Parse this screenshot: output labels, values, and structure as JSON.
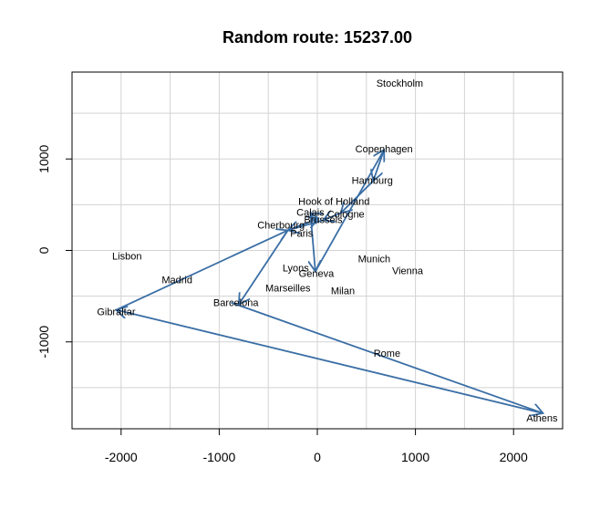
{
  "chart_data": {
    "type": "scatter",
    "title": "Random route: 15237.00",
    "xlabel": "",
    "ylabel": "",
    "xlim": [
      -2500,
      2500
    ],
    "ylim": [
      -1950,
      1950
    ],
    "x_ticks": [
      -2000,
      -1000,
      0,
      1000,
      2000
    ],
    "y_ticks": [
      -1000,
      0,
      1000
    ],
    "x_tick_labels": [
      "-2000",
      "-1000",
      "0",
      "1000",
      "2000"
    ],
    "y_tick_labels": [
      "-1000",
      "0",
      "1000"
    ],
    "grid": true,
    "grid_x": [
      -2500,
      -2000,
      -1500,
      -1000,
      -500,
      0,
      500,
      1000,
      1500,
      2000,
      2500
    ],
    "grid_y": [
      -1500,
      -1000,
      -500,
      0,
      500,
      1000,
      1500
    ],
    "grid_color": "#d3d3d3",
    "route_color": "#3a6ea5",
    "cities": [
      {
        "name": "Stockholm",
        "x": 840,
        "y": 1830
      },
      {
        "name": "Copenhagen",
        "x": 680,
        "y": 1110
      },
      {
        "name": "Hamburg",
        "x": 560,
        "y": 770
      },
      {
        "name": "Hook of Holland",
        "x": 170,
        "y": 540
      },
      {
        "name": "Calais",
        "x": -70,
        "y": 420
      },
      {
        "name": "Cologne",
        "x": 290,
        "y": 400
      },
      {
        "name": "Brussels",
        "x": 60,
        "y": 340
      },
      {
        "name": "Cherbourg",
        "x": -370,
        "y": 280
      },
      {
        "name": "Paris",
        "x": -160,
        "y": 190
      },
      {
        "name": "Lisbon",
        "x": -1940,
        "y": -60
      },
      {
        "name": "Munich",
        "x": 580,
        "y": -90
      },
      {
        "name": "Vienna",
        "x": 920,
        "y": -220
      },
      {
        "name": "Lyons",
        "x": -220,
        "y": -190
      },
      {
        "name": "Geneva",
        "x": -10,
        "y": -250
      },
      {
        "name": "Madrid",
        "x": -1430,
        "y": -320
      },
      {
        "name": "Marseilles",
        "x": -300,
        "y": -410
      },
      {
        "name": "Milan",
        "x": 260,
        "y": -440
      },
      {
        "name": "Barcelona",
        "x": -830,
        "y": -570
      },
      {
        "name": "Gibraltar",
        "x": -2050,
        "y": -670
      },
      {
        "name": "Rome",
        "x": 710,
        "y": -1120
      },
      {
        "name": "Athens",
        "x": 2290,
        "y": -1830
      }
    ],
    "route_segments": [
      {
        "x0": -880,
        "y0": -570,
        "x1": 2300,
        "y1": -1780
      },
      {
        "x0": 2300,
        "y0": -1780,
        "x1": -2050,
        "y1": -650
      },
      {
        "x0": -2050,
        "y0": -650,
        "x1": -300,
        "y1": 220
      },
      {
        "x0": -300,
        "y0": 220,
        "x1": -800,
        "y1": -590
      },
      {
        "x0": -300,
        "y0": 220,
        "x1": 10,
        "y1": 350
      },
      {
        "x0": 10,
        "y0": 350,
        "x1": -70,
        "y1": 410
      },
      {
        "x0": -70,
        "y0": 410,
        "x1": -20,
        "y1": -230
      },
      {
        "x0": -20,
        "y0": -230,
        "x1": 680,
        "y1": 1100
      },
      {
        "x0": 680,
        "y0": 1100,
        "x1": 570,
        "y1": 760
      },
      {
        "x0": 570,
        "y0": 760,
        "x1": 240,
        "y1": 410
      },
      {
        "x0": 240,
        "y0": 410,
        "x1": 60,
        "y1": 330
      },
      {
        "x0": 60,
        "y0": 330,
        "x1": -300,
        "y1": 220
      }
    ]
  }
}
